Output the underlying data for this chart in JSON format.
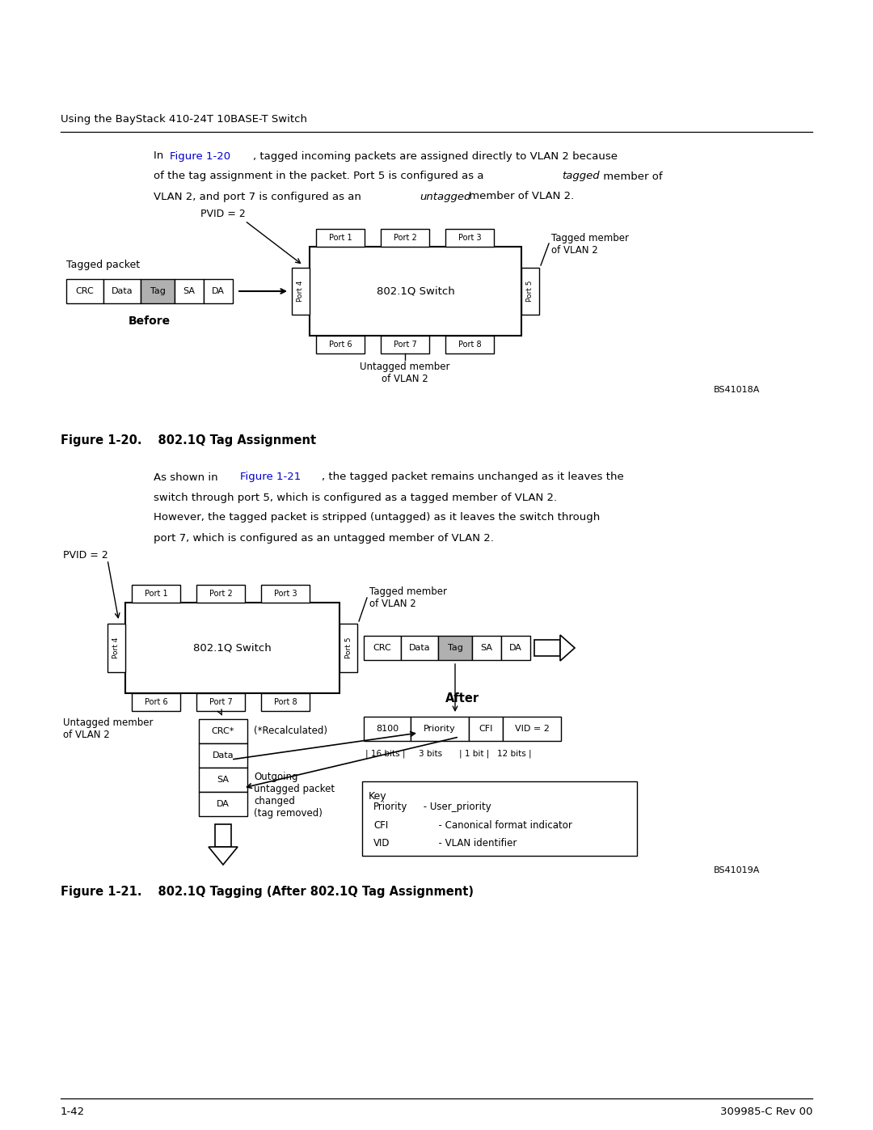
{
  "bg_color": "#ffffff",
  "header_text": "Using the BayStack 410-24T 10BASE-T Switch",
  "link_color": "#0000cc",
  "tag_fill": "#b0b0b0",
  "footer_left": "1-42",
  "footer_right": "309985-C Rev 00",
  "fig1_bs": "BS41018A",
  "fig2_bs": "BS41019A",
  "fig1_label": "Figure 1-20.",
  "fig1_title": "802.1Q Tag Assignment",
  "fig2_label": "Figure 1-21.",
  "fig2_title": "802.1Q Tagging (After 802.1Q Tag Assignment)"
}
